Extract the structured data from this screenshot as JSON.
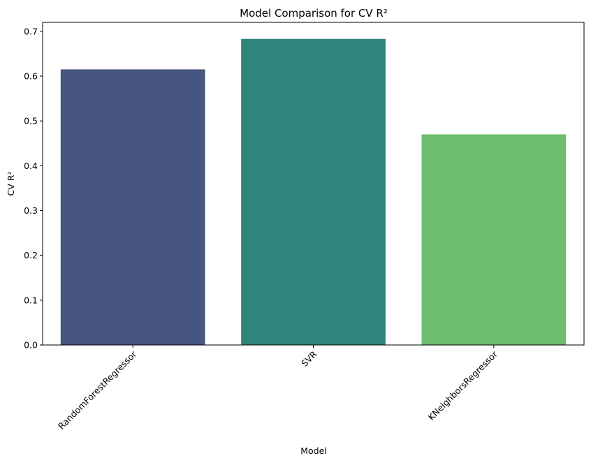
{
  "chart_data": {
    "type": "bar",
    "title": "Model Comparison for CV R²",
    "xlabel": "Model",
    "ylabel": "CV R²",
    "categories": [
      "RandomForestRegressor",
      "SVR",
      "KNeighborsRegressor"
    ],
    "values": [
      0.615,
      0.683,
      0.47
    ],
    "colors": [
      "#46567e",
      "#2f847c",
      "#6cbd6d"
    ],
    "ylim": [
      0,
      0.72
    ],
    "yticks": [
      "0.0",
      "0.1",
      "0.2",
      "0.3",
      "0.4",
      "0.5",
      "0.6",
      "0.7"
    ],
    "grid": false,
    "xtick_rotation": -45
  }
}
